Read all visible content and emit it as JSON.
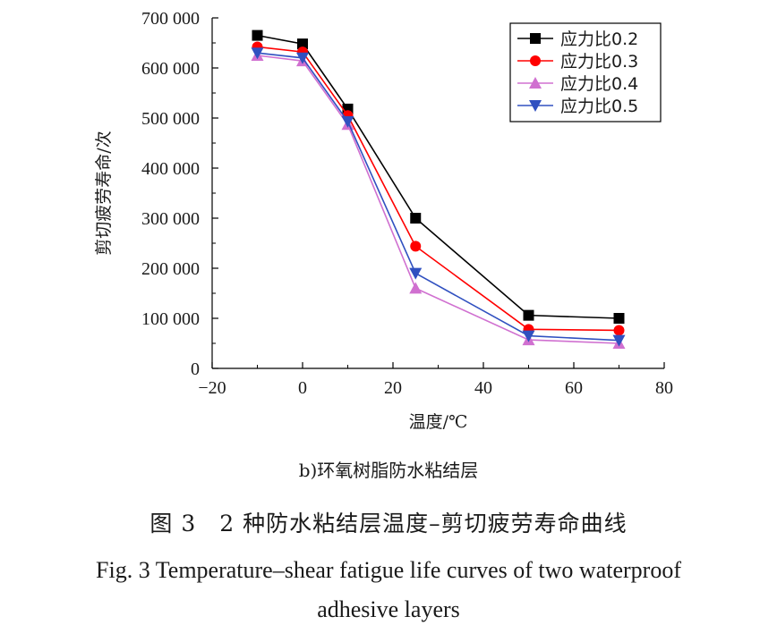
{
  "chart_data": {
    "type": "line",
    "title": "",
    "xlabel": "温度/℃",
    "ylabel": "剪切疲劳寿命/次",
    "xlim": [
      -20,
      80
    ],
    "ylim": [
      0,
      700000
    ],
    "xticks": [
      -20,
      0,
      20,
      40,
      60,
      80
    ],
    "xtick_labels": [
      "−20",
      "0",
      "20",
      "40",
      "60",
      "80"
    ],
    "yticks": [
      0,
      100000,
      200000,
      300000,
      400000,
      500000,
      600000,
      700000
    ],
    "ytick_labels": [
      "0",
      "100 000",
      "200 000",
      "300 000",
      "400 000",
      "500 000",
      "600 000",
      "700 000"
    ],
    "x": [
      -10,
      0,
      10,
      25,
      50,
      70
    ],
    "legend_position": "top-right",
    "series": [
      {
        "name": "应力比0.2",
        "color": "#000000",
        "marker": "square",
        "values": [
          665000,
          648000,
          518000,
          300000,
          106000,
          100000
        ]
      },
      {
        "name": "应力比0.3",
        "color": "#ff0000",
        "marker": "circle",
        "values": [
          642000,
          632000,
          505000,
          244000,
          78000,
          76000
        ]
      },
      {
        "name": "应力比0.4",
        "color": "#d070d0",
        "marker": "triangle-up",
        "values": [
          625000,
          614000,
          487000,
          160000,
          57000,
          50000
        ]
      },
      {
        "name": "应力比0.5",
        "color": "#3050c0",
        "marker": "triangle-down",
        "values": [
          630000,
          620000,
          493000,
          190000,
          65000,
          56000
        ]
      }
    ]
  },
  "captions": {
    "sub": "b)环氧树脂防水粘结层",
    "cn": "图 3　2 种防水粘结层温度–剪切疲劳寿命曲线",
    "en_line1": "Fig. 3 Temperature–shear fatigue life curves of two waterproof",
    "en_line2": "adhesive layers"
  }
}
